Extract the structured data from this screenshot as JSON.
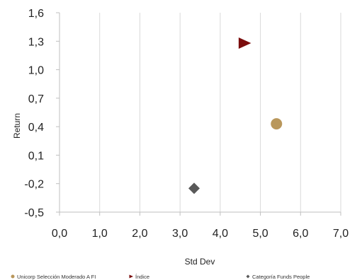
{
  "chart_data": {
    "type": "scatter",
    "xlabel": "Std Dev",
    "ylabel": "Return",
    "xlim": [
      0.0,
      7.0
    ],
    "ylim": [
      -0.5,
      1.6
    ],
    "x_ticks": [
      "0,0",
      "1,0",
      "2,0",
      "3,0",
      "4,0",
      "5,0",
      "6,0",
      "7,0"
    ],
    "y_ticks": [
      "1,6",
      "1,3",
      "1,0",
      "0,7",
      "0,4",
      "0,1",
      "-0,2",
      "-0,5"
    ],
    "grid": "vertical",
    "legend_position": "bottom",
    "series": [
      {
        "name": "Unicorp Selección Moderado A FI",
        "marker": "circle",
        "color": "#b9975b",
        "x": 5.4,
        "y": 0.43
      },
      {
        "name": "Índice",
        "marker": "triangle-right",
        "color": "#7b0d0d",
        "x": 4.6,
        "y": 1.28
      },
      {
        "name": "Categoría Funds People",
        "marker": "diamond",
        "color": "#595959",
        "x": 3.35,
        "y": -0.25
      }
    ]
  }
}
